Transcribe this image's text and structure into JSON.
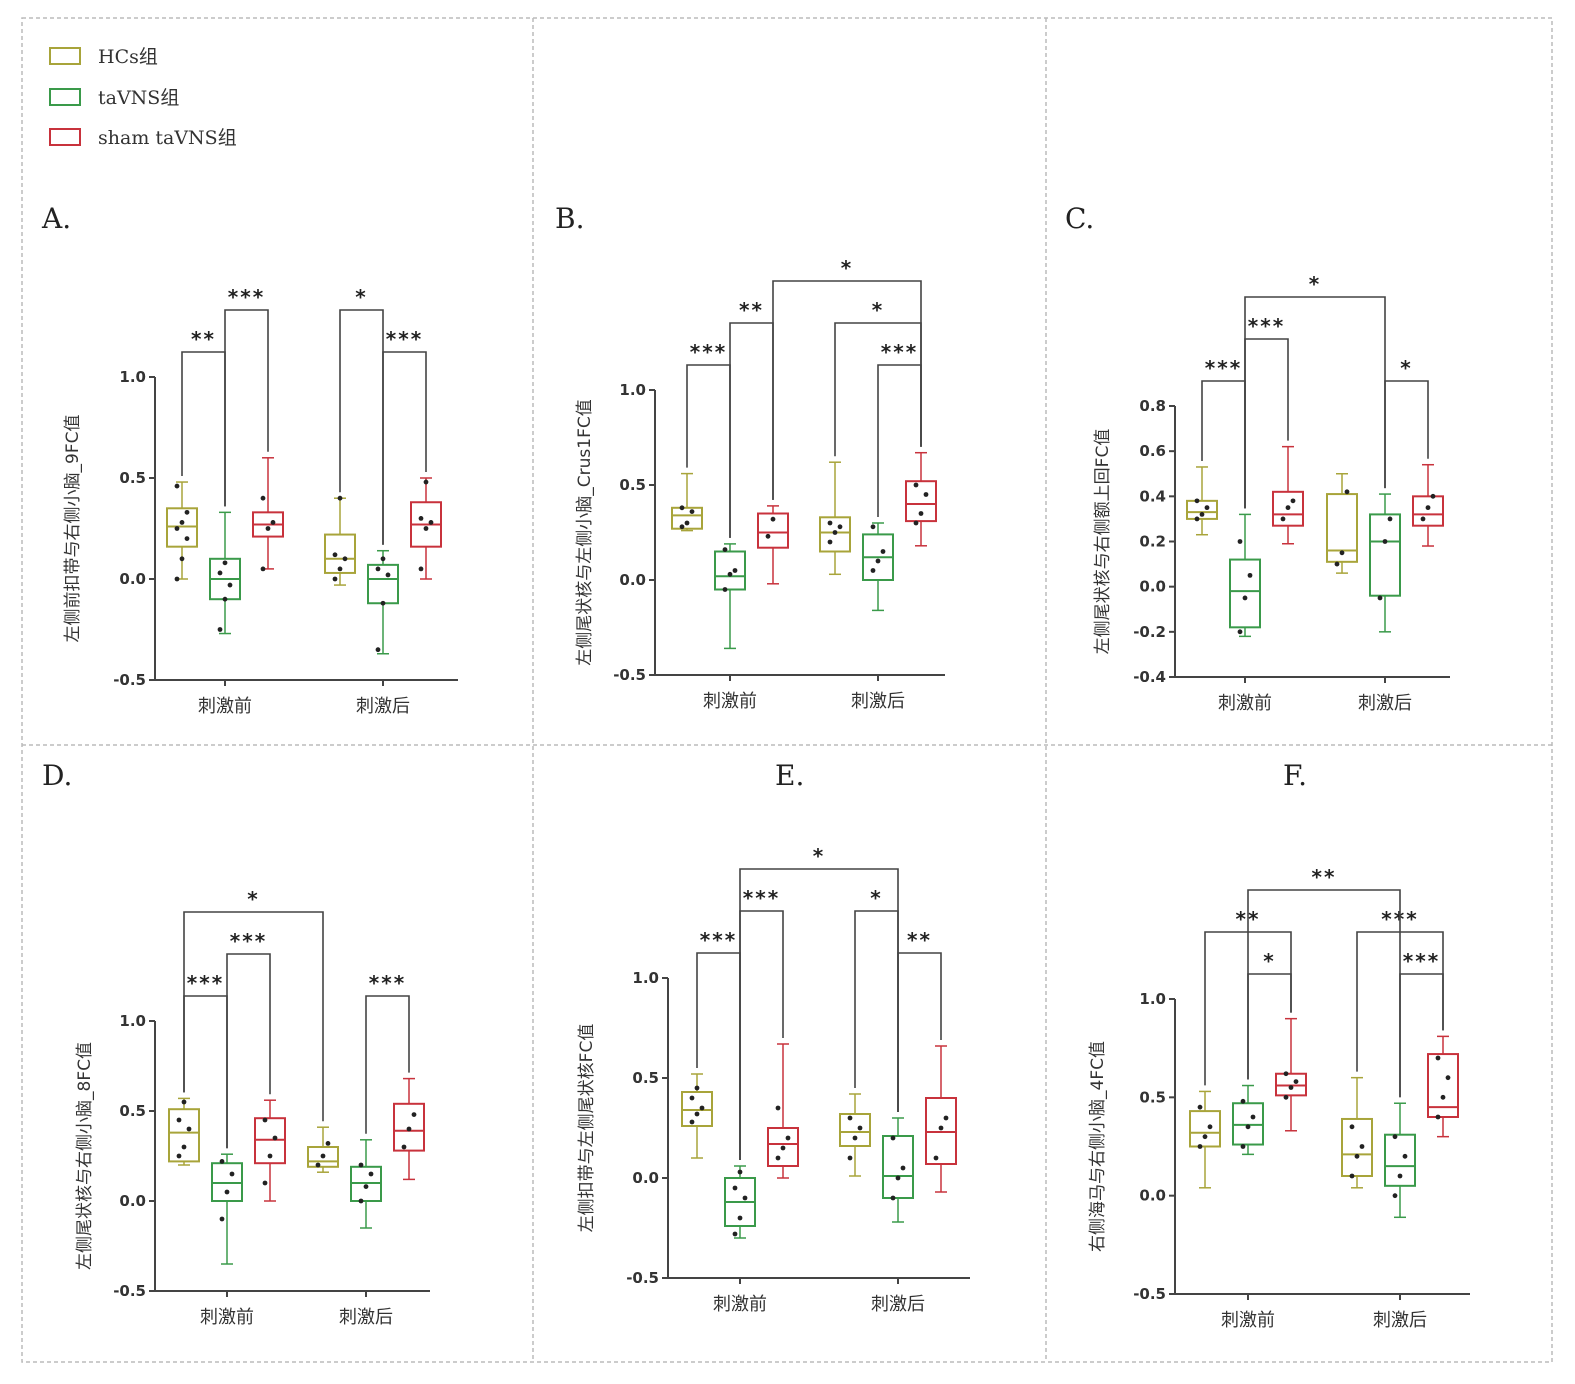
{
  "legend": [
    {
      "label": "HCs组",
      "color": "#a8a43a"
    },
    {
      "label": "taVNS组",
      "color": "#3a9a4a"
    },
    {
      "label": "sham taVNS组",
      "color": "#c8323c"
    }
  ],
  "chart_data": [
    {
      "type": "box",
      "panel_label": "A.",
      "ylabel": "左侧前扣带与右侧小脑_9FC值",
      "ylim": [
        -0.5,
        1.0
      ],
      "yticks": [
        "1.0",
        "0.5",
        "0.0",
        "-0.5"
      ],
      "ytick_values": [
        1.0,
        0.5,
        0.0,
        -0.5
      ],
      "categories": [
        "刺激前",
        "刺激后"
      ],
      "series_colors": [
        "#a8a43a",
        "#3a9a4a",
        "#c8323c"
      ],
      "boxes": [
        [
          [
            0.0,
            0.16,
            0.26,
            0.35,
            0.48
          ],
          [
            -0.27,
            -0.1,
            0.0,
            0.1,
            0.33
          ],
          [
            0.05,
            0.21,
            0.27,
            0.33,
            0.6
          ]
        ],
        [
          [
            -0.03,
            0.03,
            0.1,
            0.22,
            0.4
          ],
          [
            -0.37,
            -0.12,
            0.0,
            0.07,
            0.14
          ],
          [
            0.0,
            0.16,
            0.27,
            0.38,
            0.5
          ]
        ]
      ],
      "points": [
        [
          [
            0.0,
            0.1,
            0.2,
            0.25,
            0.28,
            0.33,
            0.46
          ],
          [
            -0.25,
            -0.1,
            -0.03,
            0.03,
            0.08
          ],
          [
            0.05,
            0.25,
            0.28,
            0.4
          ]
        ],
        [
          [
            0.0,
            0.05,
            0.1,
            0.12,
            0.4
          ],
          [
            -0.35,
            -0.12,
            0.02,
            0.05,
            0.1
          ],
          [
            0.05,
            0.25,
            0.28,
            0.3,
            0.48
          ]
        ]
      ],
      "significance": [
        {
          "from": [
            0,
            0
          ],
          "to": [
            0,
            1
          ],
          "label": "**",
          "level": 0
        },
        {
          "from": [
            0,
            1
          ],
          "to": [
            0,
            2
          ],
          "label": "***",
          "level": 1
        },
        {
          "from": [
            1,
            0
          ],
          "to": [
            1,
            1
          ],
          "label": "*",
          "level": 1
        },
        {
          "from": [
            1,
            1
          ],
          "to": [
            1,
            2
          ],
          "label": "***",
          "level": 0
        }
      ]
    },
    {
      "type": "box",
      "panel_label": "B.",
      "ylabel": "左侧尾状核与左侧小脑_Crus1FC值",
      "ylim": [
        -0.5,
        1.0
      ],
      "yticks": [
        "1.0",
        "0.5",
        "0.0",
        "-0.5"
      ],
      "ytick_values": [
        1.0,
        0.5,
        0.0,
        -0.5
      ],
      "categories": [
        "刺激前",
        "刺激后"
      ],
      "series_colors": [
        "#a8a43a",
        "#3a9a4a",
        "#c8323c"
      ],
      "boxes": [
        [
          [
            0.26,
            0.27,
            0.34,
            0.38,
            0.56
          ],
          [
            -0.36,
            -0.05,
            0.02,
            0.15,
            0.19
          ],
          [
            -0.02,
            0.17,
            0.25,
            0.35,
            0.39
          ]
        ],
        [
          [
            0.03,
            0.15,
            0.25,
            0.33,
            0.62
          ],
          [
            -0.16,
            0.0,
            0.12,
            0.24,
            0.3
          ],
          [
            0.18,
            0.31,
            0.4,
            0.52,
            0.67
          ]
        ]
      ],
      "points": [
        [
          [
            0.28,
            0.3,
            0.36,
            0.38
          ],
          [
            -0.05,
            0.03,
            0.05,
            0.16
          ],
          [
            0.23,
            0.32
          ]
        ],
        [
          [
            0.2,
            0.25,
            0.28,
            0.3
          ],
          [
            0.05,
            0.1,
            0.15,
            0.28
          ],
          [
            0.3,
            0.35,
            0.45,
            0.5
          ]
        ]
      ],
      "significance": [
        {
          "from": [
            0,
            0
          ],
          "to": [
            0,
            1
          ],
          "label": "***",
          "level": 0
        },
        {
          "from": [
            0,
            1
          ],
          "to": [
            0,
            2
          ],
          "label": "**",
          "level": 1
        },
        {
          "from": [
            1,
            0
          ],
          "to": [
            1,
            2
          ],
          "label": "*",
          "level": 1
        },
        {
          "from": [
            1,
            1
          ],
          "to": [
            1,
            2
          ],
          "label": "***",
          "level": 0
        },
        {
          "from": [
            0,
            2
          ],
          "to": [
            1,
            2
          ],
          "label": "*",
          "level": 2
        }
      ]
    },
    {
      "type": "box",
      "panel_label": "C.",
      "ylabel": "左侧尾状核与右侧额上回FC值",
      "ylim": [
        -0.4,
        0.8
      ],
      "yticks": [
        "0.8",
        "0.6",
        "0.4",
        "0.2",
        "0.0",
        "-0.2",
        "-0.4"
      ],
      "ytick_values": [
        0.8,
        0.6,
        0.4,
        0.2,
        0.0,
        -0.2,
        -0.4
      ],
      "categories": [
        "刺激前",
        "刺激后"
      ],
      "series_colors": [
        "#a8a43a",
        "#3a9a4a",
        "#c8323c"
      ],
      "boxes": [
        [
          [
            0.23,
            0.3,
            0.33,
            0.38,
            0.53
          ],
          [
            -0.22,
            -0.18,
            -0.02,
            0.12,
            0.32
          ],
          [
            0.19,
            0.27,
            0.32,
            0.42,
            0.62
          ]
        ],
        [
          [
            0.06,
            0.11,
            0.16,
            0.41,
            0.5
          ],
          [
            -0.2,
            -0.04,
            0.2,
            0.32,
            0.41
          ],
          [
            0.18,
            0.27,
            0.32,
            0.4,
            0.54
          ]
        ]
      ],
      "points": [
        [
          [
            0.3,
            0.32,
            0.35,
            0.38
          ],
          [
            -0.2,
            -0.05,
            0.05,
            0.2
          ],
          [
            0.3,
            0.35,
            0.38
          ]
        ],
        [
          [
            0.1,
            0.15,
            0.42
          ],
          [
            -0.05,
            0.2,
            0.3
          ],
          [
            0.3,
            0.35,
            0.4
          ]
        ]
      ],
      "significance": [
        {
          "from": [
            0,
            0
          ],
          "to": [
            0,
            1
          ],
          "label": "***",
          "level": 0
        },
        {
          "from": [
            0,
            1
          ],
          "to": [
            0,
            2
          ],
          "label": "***",
          "level": 1
        },
        {
          "from": [
            1,
            1
          ],
          "to": [
            1,
            2
          ],
          "label": "*",
          "level": 0
        },
        {
          "from": [
            0,
            1
          ],
          "to": [
            1,
            1
          ],
          "label": "*",
          "level": 2
        }
      ]
    },
    {
      "type": "box",
      "panel_label": "D.",
      "ylabel": "左侧尾状核与右侧小脑_8FC值",
      "ylim": [
        -0.5,
        1.0
      ],
      "yticks": [
        "1.0",
        "0.5",
        "0.0",
        "-0.5"
      ],
      "ytick_values": [
        1.0,
        0.5,
        0.0,
        -0.5
      ],
      "categories": [
        "刺激前",
        "刺激后"
      ],
      "series_colors": [
        "#a8a43a",
        "#3a9a4a",
        "#c8323c"
      ],
      "boxes": [
        [
          [
            0.2,
            0.22,
            0.38,
            0.51,
            0.57
          ],
          [
            -0.35,
            0.0,
            0.1,
            0.21,
            0.26
          ],
          [
            0.0,
            0.21,
            0.34,
            0.46,
            0.56
          ]
        ],
        [
          [
            0.16,
            0.19,
            0.22,
            0.3,
            0.41
          ],
          [
            -0.15,
            0.0,
            0.1,
            0.19,
            0.34
          ],
          [
            0.12,
            0.28,
            0.39,
            0.54,
            0.68
          ]
        ]
      ],
      "points": [
        [
          [
            0.25,
            0.3,
            0.4,
            0.45,
            0.55
          ],
          [
            -0.1,
            0.05,
            0.15,
            0.22
          ],
          [
            0.1,
            0.25,
            0.35,
            0.45
          ]
        ],
        [
          [
            0.2,
            0.25,
            0.32
          ],
          [
            0.0,
            0.08,
            0.15,
            0.2
          ],
          [
            0.3,
            0.4,
            0.48
          ]
        ]
      ],
      "significance": [
        {
          "from": [
            0,
            0
          ],
          "to": [
            0,
            1
          ],
          "label": "***",
          "level": 0
        },
        {
          "from": [
            0,
            1
          ],
          "to": [
            0,
            2
          ],
          "label": "***",
          "level": 1
        },
        {
          "from": [
            1,
            1
          ],
          "to": [
            1,
            2
          ],
          "label": "***",
          "level": 0
        },
        {
          "from": [
            0,
            0
          ],
          "to": [
            1,
            0
          ],
          "label": "*",
          "level": 2
        }
      ]
    },
    {
      "type": "box",
      "panel_label": "E.",
      "ylabel": "左侧扣带与左侧尾状核FC值",
      "ylim": [
        -0.5,
        1.0
      ],
      "yticks": [
        "1.0",
        "0.5",
        "0.0",
        "-0.5"
      ],
      "ytick_values": [
        1.0,
        0.5,
        0.0,
        -0.5
      ],
      "categories": [
        "刺激前",
        "刺激后"
      ],
      "series_colors": [
        "#a8a43a",
        "#3a9a4a",
        "#c8323c"
      ],
      "boxes": [
        [
          [
            0.1,
            0.26,
            0.34,
            0.43,
            0.52
          ],
          [
            -0.3,
            -0.24,
            -0.12,
            0.0,
            0.06
          ],
          [
            0.0,
            0.06,
            0.17,
            0.25,
            0.67
          ]
        ],
        [
          [
            0.01,
            0.16,
            0.23,
            0.32,
            0.42
          ],
          [
            -0.22,
            -0.1,
            0.01,
            0.21,
            0.3
          ],
          [
            -0.07,
            0.07,
            0.23,
            0.4,
            0.66
          ]
        ]
      ],
      "points": [
        [
          [
            0.28,
            0.32,
            0.35,
            0.4,
            0.45
          ],
          [
            -0.28,
            -0.2,
            -0.1,
            -0.05,
            0.03
          ],
          [
            0.1,
            0.15,
            0.2,
            0.35
          ]
        ],
        [
          [
            0.1,
            0.2,
            0.25,
            0.3
          ],
          [
            -0.1,
            0.0,
            0.05,
            0.2
          ],
          [
            0.1,
            0.25,
            0.3
          ]
        ]
      ],
      "significance": [
        {
          "from": [
            0,
            0
          ],
          "to": [
            0,
            1
          ],
          "label": "***",
          "level": 0
        },
        {
          "from": [
            0,
            1
          ],
          "to": [
            0,
            2
          ],
          "label": "***",
          "level": 1
        },
        {
          "from": [
            1,
            0
          ],
          "to": [
            1,
            1
          ],
          "label": "*",
          "level": 1
        },
        {
          "from": [
            1,
            1
          ],
          "to": [
            1,
            2
          ],
          "label": "**",
          "level": 0
        },
        {
          "from": [
            0,
            1
          ],
          "to": [
            1,
            1
          ],
          "label": "*",
          "level": 2
        }
      ]
    },
    {
      "type": "box",
      "panel_label": "F.",
      "ylabel": "右侧海马与右侧小脑_4FC值",
      "ylim": [
        -0.5,
        1.0
      ],
      "yticks": [
        "1.0",
        "0.5",
        "0.0",
        "-0.5"
      ],
      "ytick_values": [
        1.0,
        0.5,
        0.0,
        -0.5
      ],
      "categories": [
        "刺激前",
        "刺激后"
      ],
      "series_colors": [
        "#a8a43a",
        "#3a9a4a",
        "#c8323c"
      ],
      "boxes": [
        [
          [
            0.04,
            0.25,
            0.32,
            0.43,
            0.53
          ],
          [
            0.21,
            0.26,
            0.36,
            0.47,
            0.56
          ],
          [
            0.33,
            0.51,
            0.56,
            0.62,
            0.9
          ]
        ],
        [
          [
            0.04,
            0.1,
            0.21,
            0.39,
            0.6
          ],
          [
            -0.11,
            0.05,
            0.15,
            0.31,
            0.47
          ],
          [
            0.3,
            0.4,
            0.45,
            0.72,
            0.81
          ]
        ]
      ],
      "points": [
        [
          [
            0.25,
            0.3,
            0.35,
            0.45
          ],
          [
            0.25,
            0.35,
            0.4,
            0.48
          ],
          [
            0.5,
            0.55,
            0.58,
            0.62
          ]
        ],
        [
          [
            0.1,
            0.2,
            0.25,
            0.35
          ],
          [
            0.0,
            0.1,
            0.2,
            0.3
          ],
          [
            0.4,
            0.5,
            0.6,
            0.7
          ]
        ]
      ],
      "significance": [
        {
          "from": [
            0,
            0
          ],
          "to": [
            0,
            2
          ],
          "label": "**",
          "level": 1
        },
        {
          "from": [
            0,
            1
          ],
          "to": [
            0,
            2
          ],
          "label": "*",
          "level": 0
        },
        {
          "from": [
            1,
            0
          ],
          "to": [
            1,
            2
          ],
          "label": "***",
          "level": 1
        },
        {
          "from": [
            1,
            1
          ],
          "to": [
            1,
            2
          ],
          "label": "***",
          "level": 0
        },
        {
          "from": [
            0,
            1
          ],
          "to": [
            1,
            1
          ],
          "label": "**",
          "level": 2
        }
      ]
    }
  ]
}
